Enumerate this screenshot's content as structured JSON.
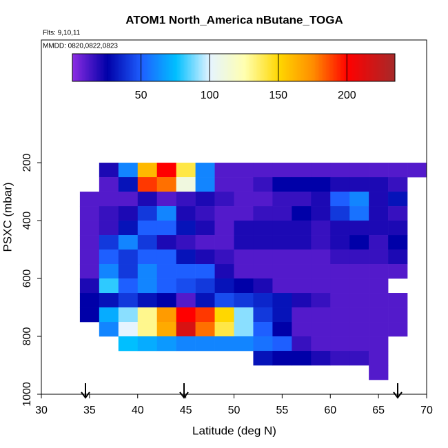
{
  "chart_data": {
    "type": "heatmap",
    "title": "ATOM1 North_America nButane_TOGA",
    "notes": [
      "Flts: 9,10,11",
      "MMDD: 0820,0822,0823"
    ],
    "x_label": "Latitude (deg N)",
    "y_label": "PSXC (mbar)",
    "xlim": [
      30,
      70
    ],
    "ylim": [
      1000,
      -224
    ],
    "xticks": [
      30,
      35,
      40,
      45,
      50,
      55,
      60,
      65,
      70
    ],
    "yticks": [
      200,
      400,
      600,
      800,
      1000
    ],
    "x_bins": [
      34,
      36,
      38,
      40,
      42,
      44,
      46,
      48,
      50,
      52,
      54,
      56,
      58,
      60,
      62,
      64,
      66,
      68,
      70
    ],
    "y_bins": [
      200,
      250,
      300,
      350,
      400,
      450,
      500,
      550,
      600,
      650,
      700,
      750,
      800,
      850,
      900,
      950
    ],
    "values": [
      [
        null,
        20,
        60,
        160,
        200,
        140,
        60,
        10,
        10,
        10,
        10,
        10,
        10,
        10,
        10,
        10,
        10,
        10
      ],
      [
        null,
        10,
        30,
        190,
        180,
        110,
        60,
        10,
        10,
        15,
        25,
        25,
        25,
        20,
        20,
        20,
        15,
        null
      ],
      [
        10,
        10,
        10,
        20,
        10,
        15,
        20,
        15,
        10,
        10,
        15,
        15,
        20,
        50,
        60,
        20,
        30,
        null
      ],
      [
        10,
        15,
        20,
        40,
        60,
        20,
        15,
        10,
        10,
        15,
        15,
        25,
        20,
        40,
        55,
        20,
        15,
        null
      ],
      [
        10,
        15,
        30,
        50,
        50,
        30,
        20,
        10,
        20,
        20,
        20,
        20,
        15,
        20,
        20,
        20,
        20,
        null
      ],
      [
        10,
        40,
        60,
        40,
        20,
        15,
        10,
        10,
        20,
        20,
        20,
        20,
        15,
        20,
        25,
        15,
        25,
        null
      ],
      [
        10,
        50,
        40,
        50,
        50,
        30,
        20,
        15,
        10,
        10,
        10,
        10,
        10,
        15,
        15,
        15,
        20,
        null
      ],
      [
        10,
        60,
        40,
        60,
        50,
        50,
        50,
        20,
        10,
        10,
        10,
        10,
        10,
        10,
        10,
        10,
        10,
        null
      ],
      [
        20,
        80,
        50,
        60,
        50,
        45,
        40,
        30,
        25,
        20,
        10,
        10,
        10,
        10,
        10,
        10,
        null,
        null
      ],
      [
        25,
        30,
        40,
        30,
        25,
        10,
        30,
        45,
        40,
        35,
        30,
        20,
        15,
        10,
        10,
        10,
        10,
        null
      ],
      [
        25,
        70,
        90,
        130,
        170,
        200,
        190,
        150,
        90,
        40,
        30,
        10,
        10,
        10,
        10,
        10,
        10,
        null
      ],
      [
        null,
        60,
        100,
        130,
        165,
        215,
        180,
        140,
        90,
        50,
        25,
        10,
        10,
        10,
        10,
        10,
        10,
        null
      ],
      [
        null,
        null,
        75,
        70,
        65,
        60,
        60,
        60,
        60,
        55,
        50,
        15,
        10,
        10,
        10,
        10,
        null,
        null
      ],
      [
        null,
        null,
        null,
        null,
        null,
        null,
        null,
        null,
        null,
        30,
        25,
        25,
        20,
        15,
        15,
        10,
        null,
        null
      ],
      [
        null,
        null,
        null,
        null,
        null,
        null,
        null,
        null,
        null,
        null,
        null,
        null,
        null,
        null,
        null,
        10,
        null,
        null
      ]
    ],
    "colorbar": {
      "lim": [
        0,
        235
      ],
      "ticks": [
        50,
        100,
        150,
        200
      ]
    },
    "colorscale": [
      [
        0,
        "#8a2be2"
      ],
      [
        25,
        "#0000a8"
      ],
      [
        50,
        "#1e5fff"
      ],
      [
        75,
        "#00bfff"
      ],
      [
        100,
        "#e6f4ff"
      ],
      [
        125,
        "#ffffb0"
      ],
      [
        150,
        "#ffd700"
      ],
      [
        175,
        "#ff8c00"
      ],
      [
        200,
        "#ff0000"
      ],
      [
        235,
        "#a52a2a"
      ]
    ]
  }
}
